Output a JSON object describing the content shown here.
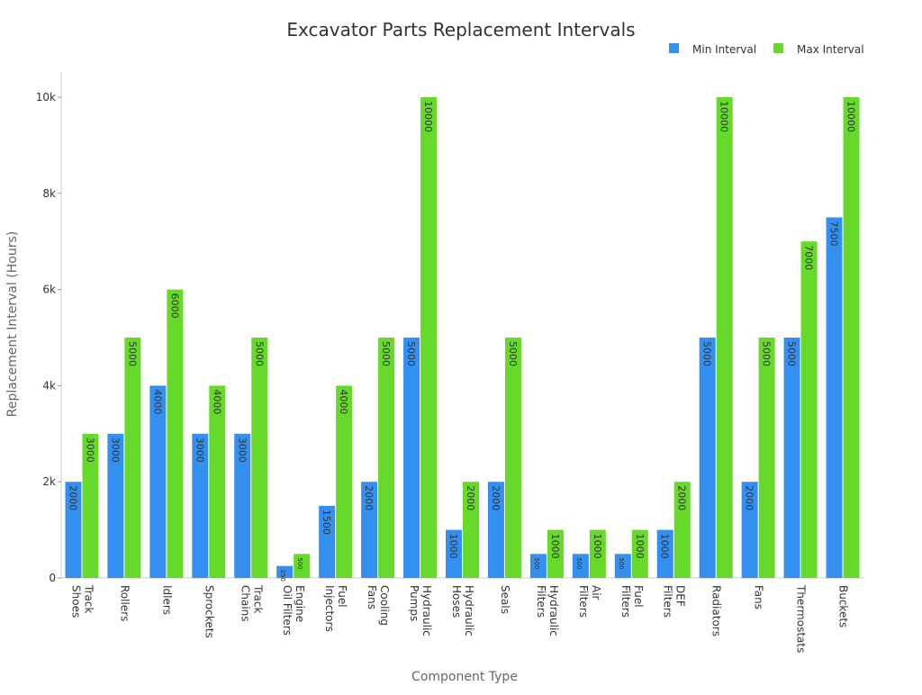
{
  "chart_data": {
    "type": "bar",
    "title": "Excavator Parts Replacement Intervals",
    "xlabel": "Component Type",
    "ylabel": "Replacement Interval (Hours)",
    "categories": [
      "Track Shoes",
      "Rollers",
      "Idlers",
      "Sprockets",
      "Track Chains",
      "Engine Oil Filters",
      "Fuel Injectors",
      "Cooling Fans",
      "Hydraulic Pumps",
      "Hydraulic Hoses",
      "Seals",
      "Hydraulic Filters",
      "Air Filters",
      "Fuel Filters",
      "DEF Filters",
      "Radiators",
      "Fans",
      "Thermostats",
      "Buckets"
    ],
    "series": [
      {
        "name": "Min Interval",
        "color": "#338ff0",
        "values": [
          2000,
          3000,
          4000,
          3000,
          3000,
          250,
          1500,
          2000,
          5000,
          1000,
          2000,
          500,
          500,
          500,
          1000,
          5000,
          2000,
          5000,
          7500
        ]
      },
      {
        "name": "Max Interval",
        "color": "#66d92a",
        "values": [
          3000,
          5000,
          6000,
          4000,
          5000,
          500,
          4000,
          5000,
          10000,
          2000,
          5000,
          1000,
          1000,
          1000,
          2000,
          10000,
          5000,
          7000,
          10000
        ]
      }
    ],
    "ylim": [
      0,
      10500
    ],
    "yticks": [
      0,
      {
        "value": 2000,
        "label": "2k"
      },
      {
        "value": 4000,
        "label": "4k"
      },
      {
        "value": 6000,
        "label": "6k"
      },
      {
        "value": 8000,
        "label": "8k"
      },
      {
        "value": 10000,
        "label": "10k"
      }
    ],
    "legend": "top-right"
  }
}
